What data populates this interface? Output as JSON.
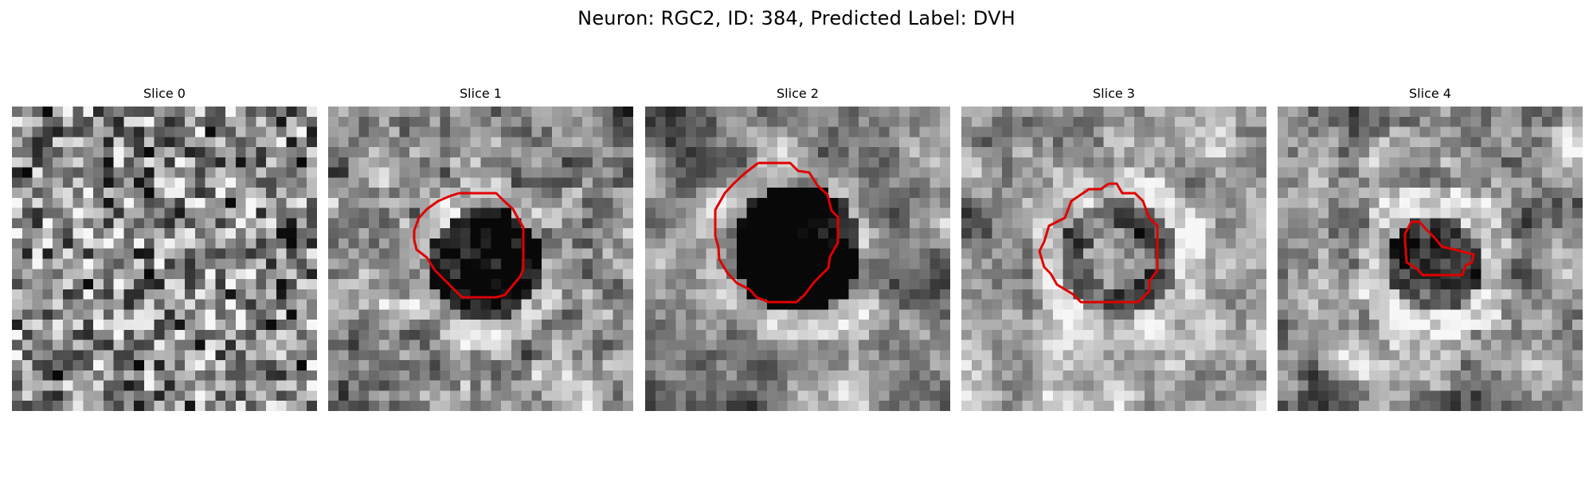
{
  "figure": {
    "title": "Neuron: RGC2, ID: 384, Predicted Label: DVH"
  },
  "contour_color": "#e00000",
  "panels": [
    {
      "title": "Slice 0"
    },
    {
      "title": "Slice 1"
    },
    {
      "title": "Slice 2"
    },
    {
      "title": "Slice 3"
    },
    {
      "title": "Slice 4"
    }
  ]
}
